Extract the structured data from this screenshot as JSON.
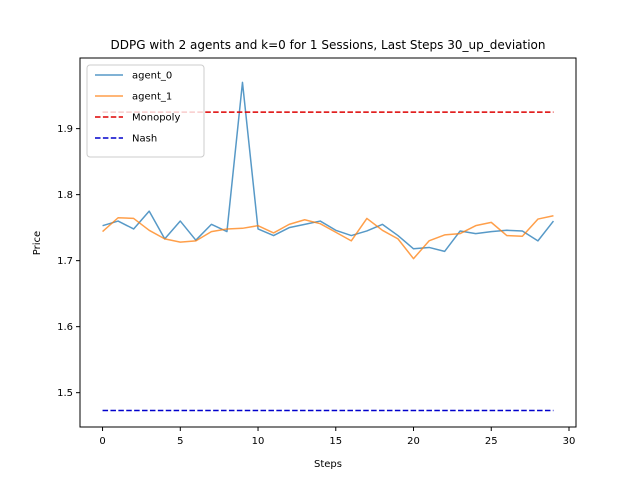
{
  "chart_data": {
    "type": "line",
    "title": "DDPG with 2 agents and k=0 for 1 Sessions, Last Steps 30_up_deviation",
    "xlabel": "Steps",
    "ylabel": "Price",
    "xlim": [
      -1.45,
      30.45
    ],
    "ylim": [
      1.448,
      2.007
    ],
    "xticks": [
      0,
      5,
      10,
      15,
      20,
      25,
      30
    ],
    "yticks": [
      1.5,
      1.6,
      1.7,
      1.8,
      1.9
    ],
    "grid": false,
    "legend_position": "top-left",
    "x": [
      0,
      1,
      2,
      3,
      4,
      5,
      6,
      7,
      8,
      9,
      10,
      11,
      12,
      13,
      14,
      15,
      16,
      17,
      18,
      19,
      20,
      21,
      22,
      23,
      24,
      25,
      26,
      27,
      28,
      29
    ],
    "series": [
      {
        "name": "agent_0",
        "color": "#1f77b4",
        "style": "solid",
        "alpha": 0.75,
        "values": [
          1.753,
          1.76,
          1.748,
          1.775,
          1.733,
          1.76,
          1.731,
          1.755,
          1.744,
          1.97,
          1.748,
          1.738,
          1.75,
          1.755,
          1.76,
          1.746,
          1.738,
          1.745,
          1.755,
          1.738,
          1.718,
          1.72,
          1.714,
          1.745,
          1.741,
          1.744,
          1.746,
          1.745,
          1.73,
          1.76
        ]
      },
      {
        "name": "agent_1",
        "color": "#ff7f0e",
        "style": "solid",
        "alpha": 0.75,
        "values": [
          1.744,
          1.765,
          1.764,
          1.746,
          1.733,
          1.728,
          1.73,
          1.744,
          1.748,
          1.749,
          1.753,
          1.742,
          1.755,
          1.762,
          1.756,
          1.743,
          1.73,
          1.764,
          1.746,
          1.733,
          1.703,
          1.73,
          1.739,
          1.741,
          1.753,
          1.758,
          1.738,
          1.737,
          1.763,
          1.768
        ]
      },
      {
        "name": "Monopoly",
        "color": "#dd0000",
        "style": "dashed",
        "alpha": 1,
        "values": [
          1.925,
          1.925,
          1.925,
          1.925,
          1.925,
          1.925,
          1.925,
          1.925,
          1.925,
          1.925,
          1.925,
          1.925,
          1.925,
          1.925,
          1.925,
          1.925,
          1.925,
          1.925,
          1.925,
          1.925,
          1.925,
          1.925,
          1.925,
          1.925,
          1.925,
          1.925,
          1.925,
          1.925,
          1.925,
          1.925
        ]
      },
      {
        "name": "Nash",
        "color": "#0000cc",
        "style": "dashed",
        "alpha": 1,
        "values": [
          1.473,
          1.473,
          1.473,
          1.473,
          1.473,
          1.473,
          1.473,
          1.473,
          1.473,
          1.473,
          1.473,
          1.473,
          1.473,
          1.473,
          1.473,
          1.473,
          1.473,
          1.473,
          1.473,
          1.473,
          1.473,
          1.473,
          1.473,
          1.473,
          1.473,
          1.473,
          1.473,
          1.473,
          1.473,
          1.473
        ]
      }
    ]
  }
}
